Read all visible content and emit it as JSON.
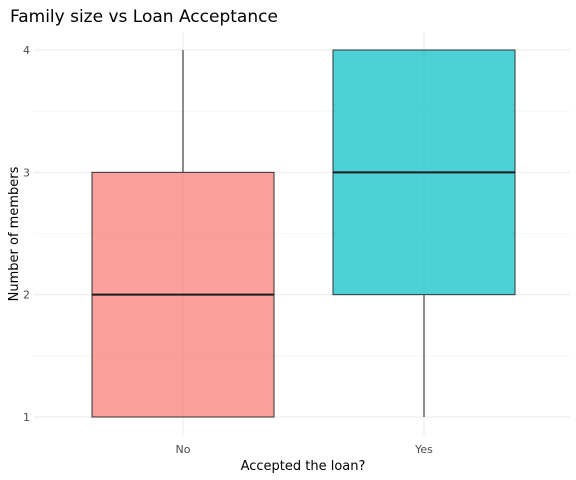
{
  "chart_data": {
    "type": "boxplot",
    "title": "Family size vs Loan Acceptance",
    "xlabel": "Accepted the loan?",
    "ylabel": "Number of members",
    "categories": [
      "No",
      "Yes"
    ],
    "boxes": [
      {
        "category": "No",
        "min": 1,
        "q1": 1,
        "median": 2,
        "q3": 3,
        "max": 4,
        "color": "#F8766D"
      },
      {
        "category": "Yes",
        "min": 1,
        "q1": 2,
        "median": 3,
        "q3": 4,
        "max": 4,
        "color": "#00BFC4"
      }
    ],
    "ylim": [
      1,
      4
    ],
    "yticks": [
      1,
      2,
      3,
      4
    ],
    "grid": true,
    "legend": "none"
  }
}
